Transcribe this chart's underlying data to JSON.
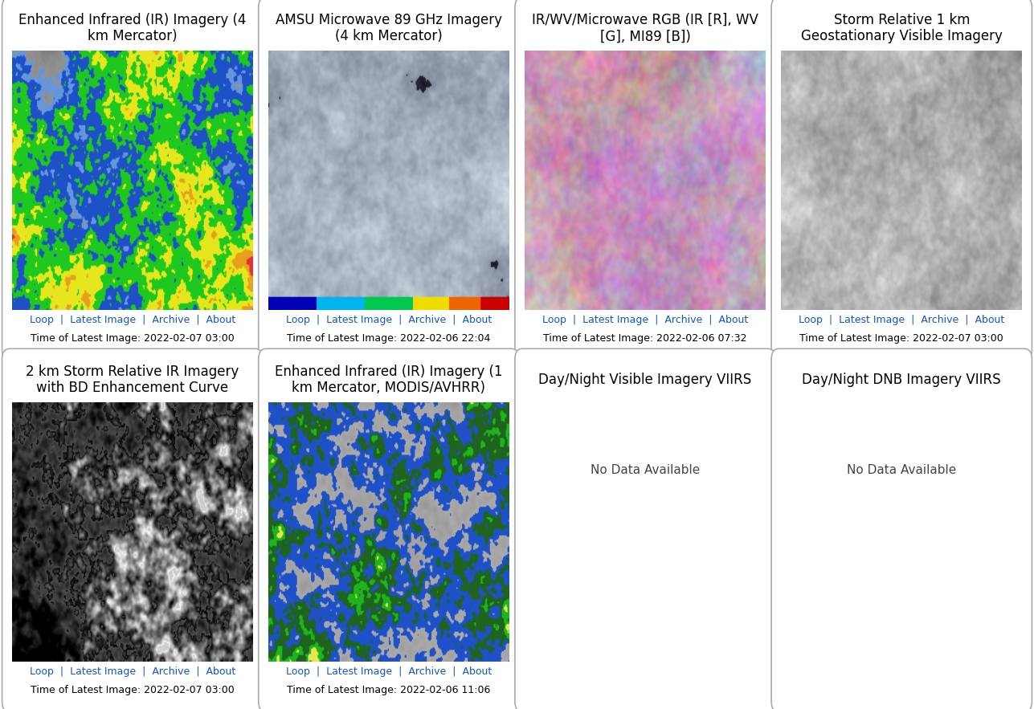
{
  "background_color": "#ffffff",
  "panel_border_color": "#aaaaaa",
  "panels": [
    {
      "row": 0,
      "col": 0,
      "title": "Enhanced Infrared (IR) Imagery (4\nkm Mercator)",
      "link_text": "Loop | Latest Image | Archive | About",
      "time_text": "Time of Latest Image: 2022-02-07 03:00",
      "has_image": true,
      "image_type": "ir_enhanced"
    },
    {
      "row": 0,
      "col": 1,
      "title": "AMSU Microwave 89 GHz Imagery\n(4 km Mercator)",
      "link_text": "Loop | Latest Image | Archive | About",
      "time_text": "Time of Latest Image: 2022-02-06 22:04",
      "has_image": true,
      "image_type": "microwave"
    },
    {
      "row": 0,
      "col": 2,
      "title": "IR/WV/Microwave RGB (IR [R], WV\n[G], MI89 [B])",
      "link_text": "Loop | Latest Image | Archive | About",
      "time_text": "Time of Latest Image: 2022-02-06 07:32",
      "has_image": true,
      "image_type": "rgb"
    },
    {
      "row": 0,
      "col": 3,
      "title": "Storm Relative 1 km\nGeostationary Visible Imagery",
      "link_text": "Loop | Latest Image | Archive | About",
      "time_text": "Time of Latest Image: 2022-02-07 03:00",
      "has_image": true,
      "image_type": "visible"
    },
    {
      "row": 1,
      "col": 0,
      "title": "2 km Storm Relative IR Imagery\nwith BD Enhancement Curve",
      "link_text": "Loop | Latest Image | Archive | About",
      "time_text": "Time of Latest Image: 2022-02-07 03:00",
      "has_image": true,
      "image_type": "ir_bd"
    },
    {
      "row": 1,
      "col": 1,
      "title": "Enhanced Infrared (IR) Imagery (1\nkm Mercator, MODIS/AVHRR)",
      "link_text": "Loop | Latest Image | Archive | About",
      "time_text": "Time of Latest Image: 2022-02-06 11:06",
      "has_image": true,
      "image_type": "ir_modis"
    },
    {
      "row": 1,
      "col": 2,
      "title": "Day/Night Visible Imagery VIIRS",
      "link_text": "",
      "time_text": "",
      "has_image": false,
      "no_data_text": "No Data Available"
    },
    {
      "row": 1,
      "col": 3,
      "title": "Day/Night DNB Imagery VIIRS",
      "link_text": "",
      "time_text": "",
      "has_image": false,
      "no_data_text": "No Data Available"
    }
  ],
  "link_color": "#1155cc",
  "time_color": "#000000",
  "title_color": "#000000",
  "panel_title_fontsize": 12,
  "link_fontsize": 9,
  "time_fontsize": 9,
  "figsize": [
    12.87,
    8.83
  ],
  "dpi": 100
}
